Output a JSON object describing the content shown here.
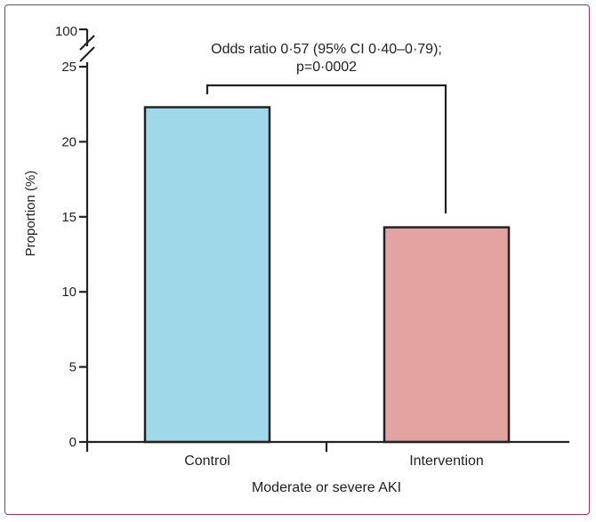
{
  "chart_data": {
    "type": "bar",
    "categories": [
      "Control",
      "Intervention"
    ],
    "values": [
      22.3,
      14.3
    ],
    "colors": [
      "#9fd8e8",
      "#e2a3a1"
    ],
    "xlabel": "Moderate or severe AKI",
    "ylabel": "Proportion (%)",
    "ylim": [
      0,
      25
    ],
    "y_ticks": [
      "0",
      "5",
      "10",
      "15",
      "20",
      "25"
    ],
    "y_break_label": "100",
    "grid": false,
    "annotation": {
      "line1": "Odds ratio 0·57 (95% CI 0·40–0·79);",
      "line2": "p=0·0002"
    },
    "frame_color": "#a0306a"
  }
}
